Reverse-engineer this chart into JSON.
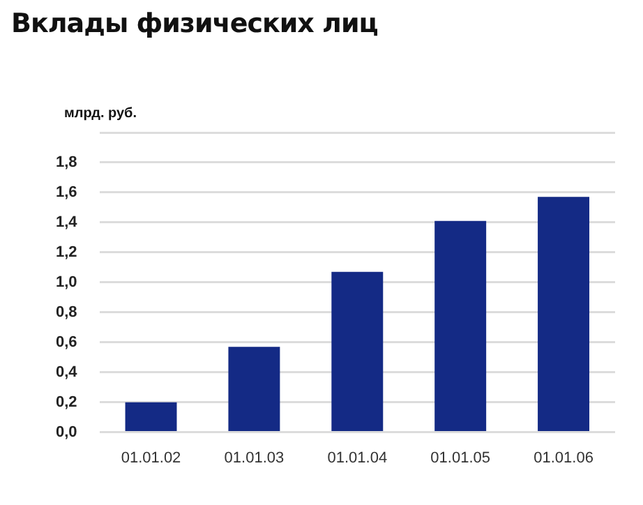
{
  "chart_data": {
    "type": "bar",
    "title": "Вклады физических лиц",
    "ylabel": "млрд. руб.",
    "categories": [
      "01.01.02",
      "01.01.03",
      "01.01.04",
      "01.01.05",
      "01.01.06"
    ],
    "values": [
      0.2,
      0.57,
      1.07,
      1.41,
      1.57
    ],
    "color": "#142a85",
    "ylim": [
      0,
      2.0
    ],
    "yticks": [
      {
        "value": 0,
        "label": "0,0"
      },
      {
        "value": 0.2,
        "label": "0,2"
      },
      {
        "value": 0.4,
        "label": "0,4"
      },
      {
        "value": 0.6,
        "label": "0,6"
      },
      {
        "value": 0.8,
        "label": "0,8"
      },
      {
        "value": 1.0,
        "label": "1,0"
      },
      {
        "value": 1.2,
        "label": "1,2"
      },
      {
        "value": 1.4,
        "label": "1,4"
      },
      {
        "value": 1.6,
        "label": "1,6"
      },
      {
        "value": 1.8,
        "label": "1,8"
      },
      {
        "value": 2.0,
        "label": null
      }
    ],
    "grid": "y",
    "legend": false
  }
}
